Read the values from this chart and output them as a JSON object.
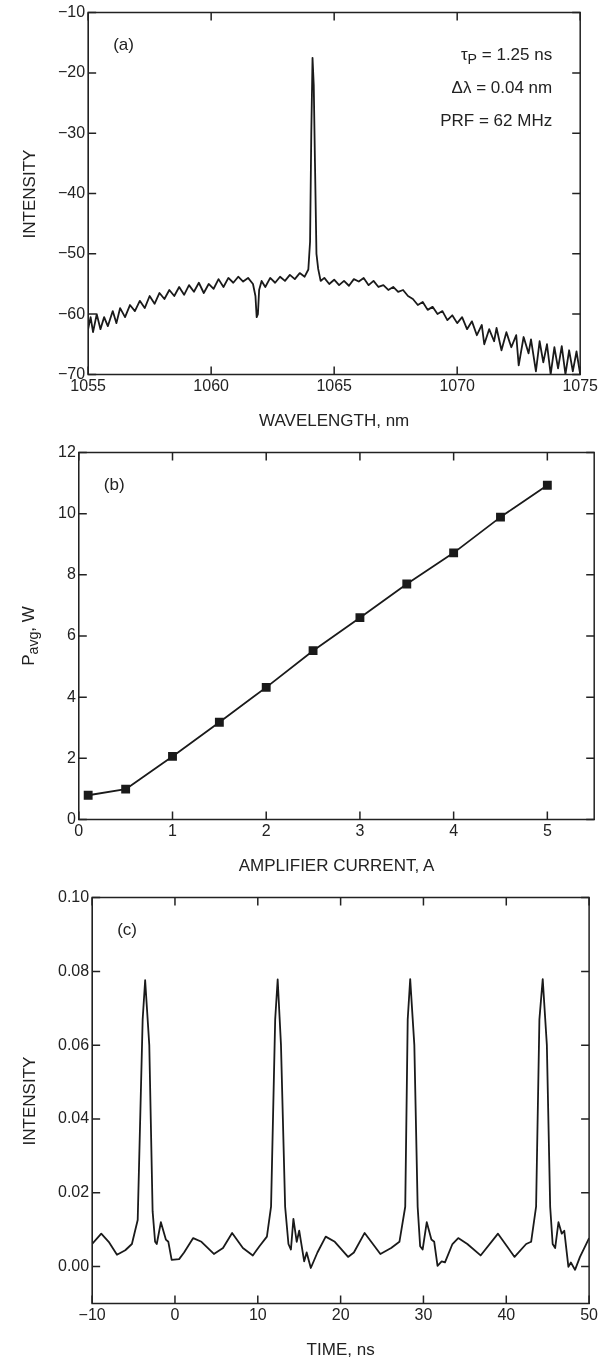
{
  "chart_data": [
    {
      "type": "line",
      "xlabel": "WAVELENGTH, nm",
      "ylabel": "INTENSITY",
      "annotations": [
        "(a)",
        "τ$_{P}$ = 1.25 ns",
        "Δλ = 0.04 nm",
        "PRF = 62 MHz"
      ],
      "xlim": [
        1055,
        1075
      ],
      "ylim": [
        -70,
        -10
      ],
      "xticks": [
        1055,
        1060,
        1065,
        1070,
        1075
      ],
      "yticks": [
        {
          "value": -70,
          "label": "−70"
        },
        {
          "value": -60,
          "label": "−60"
        },
        {
          "value": -50,
          "label": "−50"
        },
        {
          "value": -40,
          "label": "−40"
        },
        {
          "value": -30,
          "label": "−30"
        },
        {
          "value": -20,
          "label": "−20"
        },
        {
          "value": -10,
          "label": "−10"
        }
      ],
      "legend": false,
      "marker": "none",
      "line_style": "solid",
      "series": [
        {
          "color": "#1a1a1a",
          "x": [
            1055,
            1055.1,
            1055.2,
            1055.35,
            1055.5,
            1055.65,
            1055.8,
            1056,
            1056.15,
            1056.3,
            1056.5,
            1056.7,
            1056.9,
            1057.1,
            1057.3,
            1057.5,
            1057.7,
            1057.9,
            1058.1,
            1058.3,
            1058.5,
            1058.7,
            1058.9,
            1059.1,
            1059.3,
            1059.5,
            1059.7,
            1059.9,
            1060.1,
            1060.3,
            1060.5,
            1060.7,
            1060.9,
            1061.1,
            1061.3,
            1061.5,
            1061.7,
            1061.8,
            1061.85,
            1061.9,
            1061.95,
            1062.05,
            1062.2,
            1062.4,
            1062.6,
            1062.8,
            1063,
            1063.2,
            1063.4,
            1063.6,
            1063.8,
            1063.95,
            1064.02,
            1064.07,
            1064.12,
            1064.17,
            1064.22,
            1064.28,
            1064.35,
            1064.45,
            1064.6,
            1064.8,
            1065,
            1065.2,
            1065.4,
            1065.6,
            1065.8,
            1066,
            1066.2,
            1066.4,
            1066.6,
            1066.8,
            1067,
            1067.2,
            1067.4,
            1067.6,
            1067.8,
            1068,
            1068.2,
            1068.4,
            1068.6,
            1068.8,
            1069,
            1069.2,
            1069.4,
            1069.6,
            1069.8,
            1070,
            1070.2,
            1070.4,
            1070.6,
            1070.8,
            1071,
            1071.1,
            1071.3,
            1071.5,
            1071.6,
            1071.8,
            1072,
            1072.2,
            1072.4,
            1072.5,
            1072.7,
            1072.9,
            1073,
            1073.2,
            1073.35,
            1073.5,
            1073.65,
            1073.8,
            1073.95,
            1074.1,
            1074.25,
            1074.4,
            1074.55,
            1074.7,
            1074.85,
            1075
          ],
          "values": [
            -62.5,
            -60.5,
            -63,
            -60,
            -62.5,
            -60.5,
            -62,
            -59.5,
            -61.5,
            -59,
            -60.5,
            -58.5,
            -59.5,
            -57.8,
            -59,
            -57,
            -58.3,
            -56.5,
            -57.5,
            -56,
            -57,
            -55.5,
            -56.8,
            -55.2,
            -56.3,
            -54.8,
            -56.5,
            -55,
            -55.8,
            -54.2,
            -55.5,
            -54,
            -54.8,
            -53.8,
            -54.6,
            -54,
            -55,
            -57,
            -60.5,
            -60,
            -56,
            -54.5,
            -55.5,
            -54,
            -54.8,
            -53.8,
            -54.5,
            -53.5,
            -54.2,
            -53.2,
            -53.8,
            -52.6,
            -48,
            -30,
            -17.5,
            -22,
            -35,
            -50,
            -52.5,
            -54.5,
            -54,
            -55,
            -54.3,
            -55.2,
            -54.5,
            -55.3,
            -54.2,
            -54.6,
            -54,
            -55.2,
            -54.5,
            -55.5,
            -55.2,
            -56,
            -55.5,
            -56.3,
            -56,
            -57,
            -57.5,
            -58.5,
            -58,
            -59.3,
            -58.8,
            -60,
            -59.5,
            -61,
            -60.2,
            -61.5,
            -60.5,
            -62.5,
            -61.2,
            -63.5,
            -61.8,
            -65,
            -62.5,
            -64.5,
            -62.3,
            -66,
            -63,
            -65.5,
            -63.5,
            -68.5,
            -63.8,
            -66.5,
            -64.2,
            -69.5,
            -64.5,
            -68,
            -65,
            -70,
            -65.5,
            -69,
            -65.3,
            -70,
            -66,
            -69.5,
            -66.2,
            -70
          ]
        }
      ]
    },
    {
      "type": "line",
      "xlabel": "AMPLIFIER CURRENT, A",
      "ylabel": "P$_{avg}$, W",
      "annotations": [
        "(b)"
      ],
      "xlim": [
        0,
        5.5
      ],
      "ylim": [
        0,
        12
      ],
      "xticks": [
        0,
        1,
        2,
        3,
        4,
        5
      ],
      "yticks": [
        0,
        2,
        4,
        6,
        8,
        10,
        12
      ],
      "legend": false,
      "marker": "square",
      "line_style": "solid",
      "series": [
        {
          "color": "#1a1a1a",
          "x": [
            0.1,
            0.5,
            1,
            1.5,
            2,
            2.5,
            3,
            3.5,
            4,
            4.5,
            5
          ],
          "values": [
            0.79,
            0.99,
            2.06,
            3.18,
            4.32,
            5.52,
            6.6,
            7.7,
            8.72,
            9.89,
            10.93
          ]
        }
      ]
    },
    {
      "type": "line",
      "xlabel": "TIME, ns",
      "ylabel": "INTENSITY",
      "annotations": [
        "(c)"
      ],
      "xlim": [
        -10,
        50
      ],
      "ylim": [
        -0.01,
        0.1
      ],
      "xticks": [
        {
          "value": -10,
          "label": "−10"
        },
        0,
        10,
        20,
        30,
        40,
        50
      ],
      "yticks": [
        {
          "value": 0,
          "label": "0.00"
        },
        {
          "value": 0.02,
          "label": "0.02"
        },
        {
          "value": 0.04,
          "label": "0.04"
        },
        {
          "value": 0.06,
          "label": "0.06"
        },
        {
          "value": 0.08,
          "label": "0.08"
        },
        {
          "value": 0.1,
          "label": "0.10"
        }
      ],
      "legend": false,
      "marker": "none",
      "line_style": "solid",
      "series": [
        {
          "color": "#1a1a1a",
          "x": [
            -10,
            -8.9,
            -8,
            -7,
            -6,
            -5.2,
            -4.5,
            -3.9,
            -3.6,
            -3.1,
            -2.7,
            -2.4,
            -2.2,
            -1.7,
            -1.1,
            -0.8,
            -0.4,
            0.5,
            1.1,
            2.2,
            3.2,
            4.7,
            5.8,
            6.9,
            8.2,
            9.4,
            10.2,
            11.1,
            11.6,
            12.1,
            12.4,
            12.8,
            13.3,
            13.7,
            14,
            14.3,
            14.7,
            15,
            15.6,
            15.9,
            16.4,
            17.2,
            18.2,
            19.3,
            20.9,
            21.6,
            22.9,
            24.8,
            26.1,
            27.1,
            27.8,
            28.1,
            28.4,
            28.9,
            29.3,
            29.6,
            29.9,
            30.4,
            30.96,
            31.3,
            31.7,
            32.2,
            32.6,
            33.5,
            34.2,
            35.3,
            36.9,
            39,
            41,
            42.4,
            43,
            43.6,
            44,
            44.4,
            44.9,
            45.3,
            45.6,
            45.9,
            46.3,
            46.7,
            47,
            47.5,
            47.8,
            48.3,
            48.9,
            50
          ],
          "values": [
            0.0061,
            0.0089,
            0.0067,
            0.0032,
            0.0044,
            0.0061,
            0.0126,
            0.067,
            0.0776,
            0.06,
            0.015,
            0.0067,
            0.0061,
            0.012,
            0.0073,
            0.0067,
            0.0018,
            0.002,
            0.0038,
            0.0077,
            0.0067,
            0.0034,
            0.005,
            0.0091,
            0.005,
            0.003,
            0.0055,
            0.0081,
            0.0162,
            0.067,
            0.0778,
            0.06,
            0.0162,
            0.0061,
            0.0046,
            0.0129,
            0.0067,
            0.0097,
            0.0014,
            0.0038,
            -0.0004,
            0.0038,
            0.0081,
            0.0067,
            0.0026,
            0.0038,
            0.0091,
            0.0034,
            0.005,
            0.0067,
            0.0162,
            0.067,
            0.0779,
            0.06,
            0.0162,
            0.0055,
            0.0046,
            0.012,
            0.0073,
            0.0067,
            0.0002,
            0.0014,
            0.0011,
            0.0061,
            0.0077,
            0.0061,
            0.003,
            0.0089,
            0.0026,
            0.0061,
            0.0067,
            0.0162,
            0.067,
            0.0779,
            0.06,
            0.0162,
            0.0061,
            0.005,
            0.012,
            0.0089,
            0.0097,
            -0.0001,
            0.0011,
            -0.0009,
            0.0026,
            0.0077
          ]
        }
      ]
    }
  ]
}
